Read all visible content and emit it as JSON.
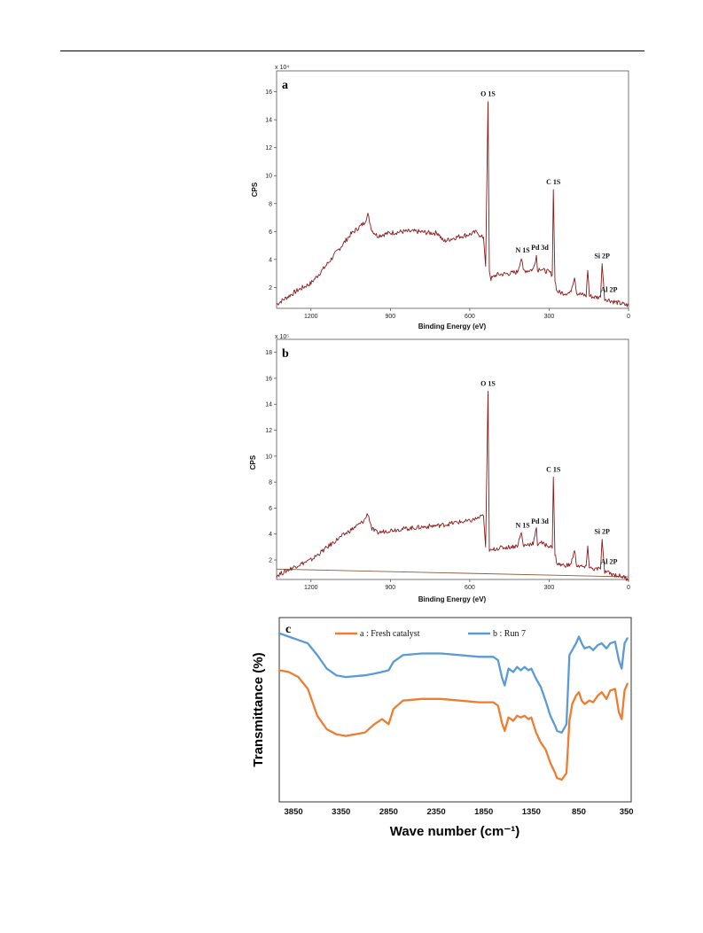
{
  "chart_data": [
    {
      "type": "line",
      "panel_label": "a",
      "multiplier": "x 10⁴",
      "xlabel": "Binding Energy (eV)",
      "ylabel": "CPS",
      "x_ticks": [
        "1200",
        "900",
        "600",
        "300",
        "0"
      ],
      "y_ticks": [
        "2",
        "4",
        "6",
        "8",
        "10",
        "12",
        "14",
        "16"
      ],
      "xlim": [
        1330,
        0
      ],
      "ylim": [
        0.5,
        17.5
      ],
      "grid": false,
      "series_color": "#8b1a1a",
      "x": [
        1330,
        1250,
        1200,
        1150,
        1100,
        1050,
        1000,
        985,
        970,
        950,
        900,
        850,
        800,
        750,
        720,
        700,
        650,
        600,
        570,
        560,
        548,
        540,
        531,
        526,
        520,
        500,
        450,
        420,
        405,
        398,
        380,
        360,
        348,
        344,
        335,
        320,
        300,
        288,
        284,
        278,
        270,
        250,
        220,
        204,
        196,
        180,
        160,
        154,
        148,
        130,
        106,
        100,
        90,
        74,
        60,
        40,
        20,
        0
      ],
      "y": [
        0.8,
        1.8,
        2.3,
        3.4,
        4.6,
        5.8,
        6.6,
        7.2,
        6.1,
        5.7,
        5.9,
        6.0,
        6.0,
        5.9,
        5.9,
        5.3,
        5.6,
        5.8,
        6.0,
        5.6,
        5.6,
        3.5,
        15.3,
        3.2,
        2.6,
        2.9,
        3.0,
        3.1,
        4.1,
        3.2,
        3.2,
        3.3,
        4.3,
        3.2,
        3.4,
        3.2,
        3.1,
        2.9,
        9.0,
        2.5,
        1.7,
        1.6,
        1.6,
        2.8,
        1.6,
        1.5,
        1.4,
        3.3,
        1.4,
        1.3,
        1.3,
        3.7,
        1.2,
        1.1,
        1.0,
        0.9,
        0.8,
        0.7
      ],
      "annotations": [
        {
          "text": "O 1S",
          "x": 531,
          "y": 15.3
        },
        {
          "text": "N 1S",
          "x": 400,
          "y": 4.1
        },
        {
          "text": "Pd 3d",
          "x": 335,
          "y": 4.3
        },
        {
          "text": "C 1S",
          "x": 284,
          "y": 9.0
        },
        {
          "text": "Si 2P",
          "x": 100,
          "y": 3.7
        },
        {
          "text": "Al 2P",
          "x": 74,
          "y": 1.3
        }
      ]
    },
    {
      "type": "line",
      "panel_label": "b",
      "multiplier": "x 10⁵",
      "xlabel": "Binding Energy (eV)",
      "ylabel": "CPS",
      "x_ticks": [
        "1200",
        "900",
        "600",
        "300",
        "0"
      ],
      "y_ticks": [
        "2",
        "4",
        "6",
        "8",
        "10",
        "12",
        "14",
        "16",
        "18"
      ],
      "xlim": [
        1330,
        0
      ],
      "ylim": [
        0.5,
        19.0
      ],
      "grid": false,
      "series_color": "#8b1a1a",
      "baseline_color": "#8b5a3c",
      "x": [
        1330,
        1250,
        1200,
        1150,
        1100,
        1050,
        1000,
        985,
        970,
        950,
        900,
        850,
        800,
        750,
        700,
        650,
        600,
        560,
        548,
        540,
        531,
        526,
        520,
        500,
        450,
        420,
        405,
        398,
        380,
        360,
        348,
        344,
        335,
        320,
        300,
        288,
        284,
        278,
        270,
        250,
        220,
        204,
        196,
        180,
        160,
        154,
        148,
        130,
        106,
        100,
        90,
        74,
        60,
        40,
        20,
        0
      ],
      "y": [
        0.8,
        1.6,
        2.0,
        2.8,
        3.6,
        4.3,
        5.0,
        5.6,
        4.4,
        4.1,
        4.3,
        4.4,
        4.5,
        4.6,
        4.7,
        4.9,
        5.0,
        5.3,
        5.4,
        3.0,
        15.0,
        2.8,
        2.7,
        2.9,
        3.0,
        3.1,
        4.1,
        3.1,
        3.2,
        3.3,
        4.4,
        3.2,
        3.4,
        3.2,
        3.1,
        2.9,
        8.4,
        2.5,
        1.7,
        1.6,
        1.6,
        2.7,
        1.6,
        1.5,
        1.4,
        3.2,
        1.4,
        1.3,
        1.3,
        3.6,
        1.1,
        1.0,
        0.9,
        0.8,
        0.7,
        0.5
      ],
      "baseline_x": [
        1330,
        0
      ],
      "baseline_y": [
        1.3,
        0.7
      ],
      "annotations": [
        {
          "text": "O 1S",
          "x": 531,
          "y": 15.0
        },
        {
          "text": "N 1S",
          "x": 400,
          "y": 4.1
        },
        {
          "text": "Pd 3d",
          "x": 335,
          "y": 4.4
        },
        {
          "text": "C 1S",
          "x": 284,
          "y": 8.4
        },
        {
          "text": "Si 2P",
          "x": 100,
          "y": 3.6
        },
        {
          "text": "Al 2P",
          "x": 74,
          "y": 1.3
        }
      ]
    },
    {
      "type": "line",
      "panel_label": "c",
      "xlabel": "Wave number (cm⁻¹)",
      "ylabel": "Transmittance (%)",
      "x_ticks": [
        "3850",
        "3350",
        "2850",
        "2350",
        "1850",
        "1350",
        "850",
        "350"
      ],
      "xlim": [
        4000,
        300
      ],
      "ylim": [
        0,
        100
      ],
      "grid": false,
      "series": [
        {
          "name": "a : Fresh catalyst",
          "color": "#ed7d31",
          "x": [
            4000,
            3900,
            3800,
            3700,
            3600,
            3500,
            3400,
            3300,
            3100,
            3000,
            2920,
            2850,
            2800,
            2700,
            2500,
            2300,
            2100,
            1900,
            1750,
            1700,
            1660,
            1630,
            1590,
            1540,
            1500,
            1460,
            1420,
            1380,
            1350,
            1300,
            1250,
            1200,
            1150,
            1100,
            1080,
            1030,
            980,
            950,
            920,
            880,
            850,
            820,
            790,
            740,
            700,
            650,
            610,
            560,
            520,
            470,
            430,
            400,
            370,
            340
          ],
          "y": [
            75,
            74,
            71,
            64,
            48,
            40,
            37,
            36,
            38,
            43,
            46,
            43,
            52,
            57,
            58,
            58,
            57,
            56,
            56,
            54,
            44,
            39,
            47,
            45,
            48,
            47,
            48,
            46,
            47,
            38,
            32,
            28,
            20,
            14,
            11,
            10,
            14,
            45,
            55,
            60,
            62,
            57,
            55,
            57,
            56,
            60,
            62,
            58,
            63,
            64,
            50,
            46,
            63,
            67
          ]
        },
        {
          "name": "b : Run 7",
          "color": "#5b9bd5",
          "x": [
            4000,
            3900,
            3800,
            3700,
            3600,
            3500,
            3400,
            3300,
            3100,
            3000,
            2920,
            2850,
            2800,
            2700,
            2500,
            2300,
            2100,
            1900,
            1750,
            1700,
            1660,
            1630,
            1590,
            1540,
            1500,
            1460,
            1420,
            1380,
            1350,
            1300,
            1250,
            1200,
            1150,
            1100,
            1080,
            1030,
            980,
            950,
            920,
            880,
            850,
            820,
            790,
            740,
            700,
            650,
            610,
            560,
            520,
            470,
            430,
            400,
            370,
            340
          ],
          "y": [
            97,
            95,
            93,
            91,
            84,
            76,
            72,
            71,
            72,
            73,
            74,
            75,
            80,
            84,
            85,
            85,
            84,
            83,
            83,
            81,
            71,
            66,
            76,
            74,
            77,
            75,
            77,
            75,
            76,
            70,
            65,
            57,
            48,
            42,
            39,
            38,
            43,
            84,
            87,
            91,
            95,
            91,
            88,
            89,
            87,
            90,
            91,
            88,
            91,
            92,
            81,
            76,
            91,
            94
          ]
        }
      ]
    }
  ]
}
